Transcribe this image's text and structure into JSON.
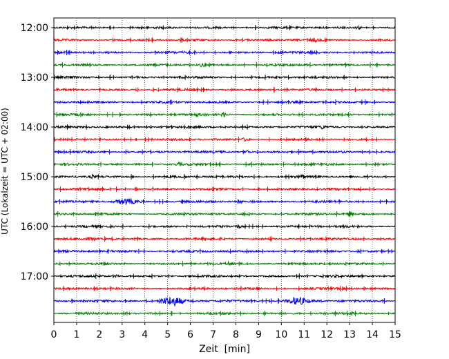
{
  "chart_data": {
    "type": "line",
    "subtype": "helicorder-seismogram",
    "xlabel": "Zeit  [min]",
    "ylabel": "UTC (Lokalzeit = UTC + 02:00)",
    "xlim": [
      0,
      15
    ],
    "x_ticks": [
      "0",
      "1",
      "2",
      "3",
      "4",
      "5",
      "6",
      "7",
      "8",
      "9",
      "10",
      "11",
      "12",
      "13",
      "14",
      "15"
    ],
    "vertical_grid": "dotted, every 1 min",
    "y_tick_labels": [
      "12:00",
      "13:00",
      "14:00",
      "15:00",
      "16:00",
      "17:00"
    ],
    "trace_colors": [
      "#000000",
      "#ff0000",
      "#0000ff",
      "#008000"
    ],
    "rows": [
      {
        "start": "12:00",
        "color": "#000000",
        "events": [
          {
            "t": 13.4,
            "amp": 2.2
          }
        ]
      },
      {
        "start": "12:15",
        "color": "#ff0000",
        "events": [
          {
            "t": 11.5,
            "amp": 1.6
          }
        ]
      },
      {
        "start": "12:30",
        "color": "#0000ff",
        "events": [
          {
            "t": 9.9,
            "amp": 1.8
          }
        ]
      },
      {
        "start": "12:45",
        "color": "#008000",
        "events": [
          {
            "t": 6.5,
            "amp": 1.8
          }
        ]
      },
      {
        "start": "13:00",
        "color": "#000000",
        "events": []
      },
      {
        "start": "13:15",
        "color": "#ff0000",
        "events": []
      },
      {
        "start": "13:30",
        "color": "#0000ff",
        "events": []
      },
      {
        "start": "13:45",
        "color": "#008000",
        "events": [
          {
            "t": 7.5,
            "amp": 3.0
          },
          {
            "t": 6.3,
            "amp": 1.6
          }
        ]
      },
      {
        "start": "14:00",
        "color": "#000000",
        "events": [
          {
            "t": 11.8,
            "amp": 1.6
          }
        ]
      },
      {
        "start": "14:15",
        "color": "#ff0000",
        "events": [
          {
            "t": 8.4,
            "amp": 2.2
          }
        ]
      },
      {
        "start": "14:30",
        "color": "#0000ff",
        "events": [
          {
            "t": 8.5,
            "amp": 2.2
          }
        ]
      },
      {
        "start": "14:45",
        "color": "#008000",
        "events": [
          {
            "t": 5.5,
            "amp": 1.6
          }
        ]
      },
      {
        "start": "15:00",
        "color": "#000000",
        "events": [
          {
            "t": 1.7,
            "amp": 2.0
          },
          {
            "t": 10.9,
            "amp": 2.0
          }
        ]
      },
      {
        "start": "15:15",
        "color": "#ff0000",
        "events": []
      },
      {
        "start": "15:30",
        "color": "#0000ff",
        "events": [
          {
            "t": 3.2,
            "amp": 3.4
          },
          {
            "t": 8.2,
            "amp": 2.2
          }
        ]
      },
      {
        "start": "15:45",
        "color": "#008000",
        "events": [
          {
            "t": 13.0,
            "amp": 2.8
          }
        ]
      },
      {
        "start": "16:00",
        "color": "#000000",
        "events": [
          {
            "t": 8.1,
            "amp": 1.6
          }
        ]
      },
      {
        "start": "16:15",
        "color": "#ff0000",
        "events": [
          {
            "t": 1.7,
            "amp": 1.4
          }
        ]
      },
      {
        "start": "16:30",
        "color": "#0000ff",
        "events": []
      },
      {
        "start": "16:45",
        "color": "#008000",
        "events": [
          {
            "t": 7.7,
            "amp": 1.8
          }
        ]
      },
      {
        "start": "17:00",
        "color": "#000000",
        "events": [
          {
            "t": 2.8,
            "amp": 1.4
          }
        ]
      },
      {
        "start": "17:15",
        "color": "#ff0000",
        "events": [
          {
            "t": 8.9,
            "amp": 1.6
          }
        ]
      },
      {
        "start": "17:30",
        "color": "#0000ff",
        "events": [
          {
            "t": 5.2,
            "amp": 6.0
          },
          {
            "t": 10.7,
            "amp": 4.5
          }
        ]
      },
      {
        "start": "17:45",
        "color": "#008000",
        "events": []
      }
    ]
  }
}
